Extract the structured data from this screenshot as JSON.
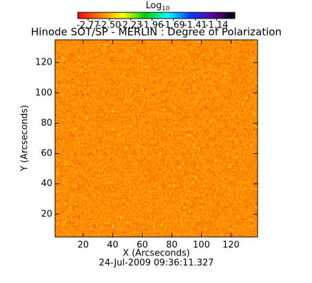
{
  "chart_data": {
    "type": "heatmap",
    "title": "Hinode SOT/SP - MERLIN : Degree of Polarization",
    "xlabel": "X (Arcseconds)",
    "ylabel": "Y (Arcseconds)",
    "footer": "24-Jul-2009 09:36:11.327",
    "xlim": [
      1,
      138
    ],
    "ylim": [
      5,
      135
    ],
    "xticks": [
      20,
      40,
      60,
      80,
      100,
      120
    ],
    "yticks": [
      20,
      40,
      60,
      80,
      100,
      120
    ],
    "colorbar": {
      "label": "Log",
      "label_sub": "10",
      "lim": [
        -2.9,
        -0.91
      ],
      "ticks": [
        -2.77,
        {
          "value": -2.5,
          "label": "-2.50"
        },
        -2.23,
        -1.96,
        -1.69,
        -1.41,
        -1.14
      ],
      "colors": [
        "#ff0000",
        "#ff8000",
        "#ffff00",
        "#00d000",
        "#00ffff",
        "#0040ff",
        "#6000a0",
        "#000000"
      ]
    }
  }
}
